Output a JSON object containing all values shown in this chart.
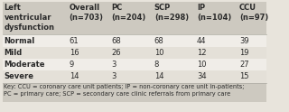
{
  "title_col": "Left\nventricular\ndysfunction",
  "columns": [
    "Overall\n(n=703)",
    "PC\n(n=204)",
    "SCP\n(n=298)",
    "IP\n(n=104)",
    "CCU\n(n=97)"
  ],
  "rows": [
    {
      "label": "Normal",
      "values": [
        61,
        68,
        68,
        44,
        39
      ]
    },
    {
      "label": "Mild",
      "values": [
        16,
        26,
        10,
        12,
        19
      ]
    },
    {
      "label": "Moderate",
      "values": [
        9,
        3,
        8,
        10,
        27
      ]
    },
    {
      "label": "Severe",
      "values": [
        14,
        3,
        14,
        34,
        15
      ]
    }
  ],
  "key_text": "Key: CCU = coronary care unit patients; IP = non-coronary care unit in-patients;\nPC = primary care; SCP = secondary care clinic referrals from primary care",
  "bg_color": "#e8e4dc",
  "header_bg": "#cdc9c0",
  "row_bg_odd": "#f0ede8",
  "row_bg_even": "#e4e0d8",
  "key_bg": "#cdc9c0",
  "text_color": "#2a2a2a",
  "header_text_color": "#2a2a2a",
  "font_size": 6.0,
  "header_font_size": 6.0,
  "key_font_size": 4.8,
  "sep_color": "#aaa9a0"
}
